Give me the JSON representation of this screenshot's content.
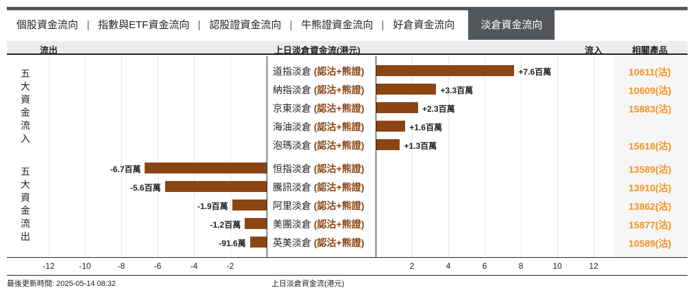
{
  "tabs": [
    "個股資金流向",
    "指數與ETF資金流向",
    "認股證資金流向",
    "牛熊證資金流向",
    "好倉資金流向",
    "淡倉資金流向"
  ],
  "active_tab": 5,
  "header": {
    "outflow": "流出",
    "title": "上日淡倉資金流(港元)",
    "inflow": "流入",
    "products": "相關產品"
  },
  "side_labels": {
    "top": "五大資金流入",
    "bottom": "五大資金流出"
  },
  "type_suffix": "(認沽+熊證)",
  "colors": {
    "bar": "#8b4513",
    "product": "#f5921e"
  },
  "chart_data": {
    "type": "bar",
    "orientation": "horizontal",
    "unit": "百萬港元",
    "xlim": [
      -12,
      12
    ],
    "ticks_left": [
      "-12",
      "-10",
      "-8",
      "-6",
      "-4",
      "-2"
    ],
    "ticks_right": [
      "2",
      "4",
      "6",
      "8",
      "10",
      "12"
    ],
    "xlabel": "上日淡倉資金流(港元)",
    "rows": [
      {
        "name": "道指淡倉",
        "value": 7.6,
        "label": "+7.6百萬",
        "product": "10611(沽)"
      },
      {
        "name": "納指淡倉",
        "value": 3.3,
        "label": "+3.3百萬",
        "product": "10609(沽)"
      },
      {
        "name": "京東淡倉",
        "value": 2.3,
        "label": "+2.3百萬",
        "product": "15883(沽)"
      },
      {
        "name": "海油淡倉",
        "value": 1.6,
        "label": "+1.6百萬",
        "product": ""
      },
      {
        "name": "泡瑪淡倉",
        "value": 1.3,
        "label": "+1.3百萬",
        "product": "15618(沽)"
      },
      {
        "name": "恒指淡倉",
        "value": -6.7,
        "label": "-6.7百萬",
        "product": "13589(沽)"
      },
      {
        "name": "騰訊淡倉",
        "value": -5.6,
        "label": "-5.6百萬",
        "product": "13910(沽)"
      },
      {
        "name": "阿里淡倉",
        "value": -1.9,
        "label": "-1.9百萬",
        "product": "13862(沽)"
      },
      {
        "name": "美團淡倉",
        "value": -1.2,
        "label": "-1.2百萬",
        "product": "15877(沽)"
      },
      {
        "name": "英美淡倉",
        "value": -0.916,
        "label": "-91.6萬",
        "product": "10589(沽)"
      }
    ]
  },
  "footer": {
    "updated": "最後更新時間: 2025-05-14 08:32",
    "xlabel": "上日淡倉資金流(港元)"
  }
}
